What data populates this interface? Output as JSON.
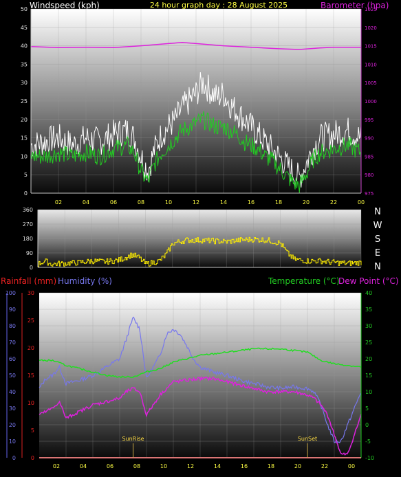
{
  "chart_data": [
    {
      "type": "line",
      "title": "24 hour graph day : 28 August 2025",
      "ylabel_left": "Windspeed (kph)",
      "ylabel_right": "Barometer (hpa)",
      "y_left_ticks": [
        "0",
        "5",
        "10",
        "15",
        "20",
        "25",
        "30",
        "35",
        "40",
        "45",
        "50"
      ],
      "y_right_ticks": [
        "975",
        "980",
        "985",
        "990",
        "995",
        "1000",
        "1005",
        "1010",
        "1015",
        "1020",
        "1025"
      ],
      "x_ticks": [
        "02",
        "04",
        "06",
        "08",
        "10",
        "12",
        "14",
        "16",
        "18",
        "20",
        "22",
        "00"
      ],
      "ylim_left": [
        0,
        50
      ],
      "ylim_right": [
        975,
        1025
      ],
      "colors": {
        "gust": "#ffffff",
        "average": "#22cc22",
        "barometer": "#dd22dd",
        "title": "#ffff44"
      },
      "series": [
        {
          "key": "barometer",
          "x": [
            0,
            2,
            4,
            6,
            8,
            10,
            11,
            12,
            14,
            16,
            18,
            19.5,
            21,
            22,
            24
          ],
          "values": [
            1014.8,
            1014.5,
            1014.6,
            1014.5,
            1015.0,
            1015.6,
            1015.9,
            1015.6,
            1015.0,
            1014.6,
            1014.2,
            1014.0,
            1014.4,
            1014.6,
            1014.6
          ]
        },
        {
          "key": "gust",
          "x": [
            0,
            1,
            2,
            3,
            4,
            5,
            6,
            7,
            7.5,
            8,
            8.5,
            9,
            9.5,
            10,
            10.5,
            11,
            11.5,
            12,
            12.5,
            13,
            13.5,
            14,
            14.5,
            15,
            15.5,
            16,
            16.5,
            17,
            17.5,
            18,
            18.5,
            19,
            19.5,
            20,
            20.5,
            21,
            22,
            23,
            24
          ],
          "values": [
            13,
            14,
            15,
            13,
            15,
            14,
            16,
            17,
            15,
            10,
            6,
            12,
            16,
            18,
            20,
            23,
            25,
            27,
            30,
            28,
            26,
            27,
            24,
            22,
            20,
            18,
            16,
            14,
            12,
            10,
            8,
            6,
            4,
            8,
            12,
            15,
            16,
            17,
            15
          ]
        },
        {
          "key": "average",
          "x": [
            0,
            1,
            2,
            3,
            4,
            5,
            6,
            7,
            7.5,
            8,
            8.5,
            9,
            9.5,
            10,
            10.5,
            11,
            11.5,
            12,
            12.5,
            13,
            13.5,
            14,
            14.5,
            15,
            15.5,
            16,
            16.5,
            17,
            17.5,
            18,
            18.5,
            19,
            19.5,
            20,
            20.5,
            21,
            22,
            23,
            24
          ],
          "values": [
            10,
            10,
            11,
            10,
            11,
            10,
            12,
            13,
            11,
            6,
            3,
            8,
            11,
            13,
            15,
            17,
            18,
            19,
            20,
            19,
            18,
            18,
            17,
            16,
            14,
            13,
            12,
            10,
            9,
            7,
            5,
            3,
            2,
            5,
            9,
            11,
            12,
            13,
            11
          ]
        }
      ]
    },
    {
      "type": "line",
      "ylabel_right": "N W S E N",
      "compass": [
        "N",
        "W",
        "S",
        "E",
        "N"
      ],
      "y_ticks": [
        "0",
        "90",
        "180",
        "270",
        "360"
      ],
      "ylim": [
        0,
        360
      ],
      "colors": {
        "direction": "#ffee00"
      },
      "series": [
        {
          "key": "direction",
          "x": [
            0,
            0.5,
            1,
            2,
            3,
            4,
            5,
            6,
            7,
            7.5,
            8,
            9,
            9.5,
            10,
            11,
            12,
            13,
            14,
            15,
            16,
            17,
            18,
            18.5,
            19,
            20,
            21,
            22,
            23,
            24
          ],
          "values": [
            20,
            40,
            20,
            25,
            30,
            40,
            35,
            45,
            80,
            60,
            20,
            40,
            80,
            150,
            170,
            170,
            165,
            160,
            170,
            175,
            170,
            150,
            90,
            50,
            40,
            40,
            30,
            25,
            30
          ]
        }
      ]
    },
    {
      "type": "line",
      "ylabel_left_1": "Rainfall (mm)",
      "ylabel_left_2": "Humidity (%)",
      "ylabel_right_1": "Temperature (°C)",
      "ylabel_right_2": "Dew Point (°C)",
      "rain_ticks": [
        "0",
        "5",
        "10",
        "15",
        "20",
        "25",
        "30"
      ],
      "hum_ticks": [
        "0",
        "10",
        "20",
        "30",
        "40",
        "50",
        "60",
        "70",
        "80",
        "90",
        "100"
      ],
      "temp_ticks": [
        "-10",
        "-5",
        "0",
        "5",
        "10",
        "15",
        "20",
        "25",
        "30",
        "35",
        "40"
      ],
      "x_ticks": [
        "02",
        "04",
        "06",
        "08",
        "10",
        "12",
        "14",
        "16",
        "18",
        "20",
        "22",
        "00"
      ],
      "ylim_rain": [
        0,
        30
      ],
      "ylim_hum": [
        0,
        100
      ],
      "ylim_temp": [
        -10,
        40
      ],
      "annotations": [
        {
          "text": "SunRise",
          "x": 7
        },
        {
          "text": "SunSet",
          "x": 20
        }
      ],
      "colors": {
        "rain": "#ee2222",
        "humidity": "#7777ee",
        "temperature": "#22dd22",
        "dewpoint": "#dd22dd",
        "sunline": "#ffdd44"
      },
      "series": [
        {
          "key": "humidity",
          "x": [
            0,
            0.5,
            1,
            1.5,
            2,
            3,
            4,
            5,
            6,
            6.5,
            7,
            7.5,
            8,
            8.5,
            9,
            9.5,
            10,
            10.5,
            11,
            11.5,
            12,
            13,
            14,
            15,
            16,
            17,
            18,
            19,
            20,
            20.5,
            21,
            21.5,
            22,
            22.5,
            23,
            23.5,
            24
          ],
          "values": [
            42,
            48,
            50,
            55,
            45,
            47,
            50,
            55,
            60,
            72,
            85,
            78,
            48,
            55,
            62,
            75,
            78,
            75,
            68,
            60,
            55,
            52,
            50,
            47,
            45,
            43,
            42,
            43,
            42,
            40,
            32,
            20,
            10,
            10,
            20,
            30,
            40
          ]
        },
        {
          "key": "temperature",
          "x": [
            0,
            1,
            2,
            3,
            4,
            5,
            6,
            7,
            8,
            9,
            10,
            11,
            12,
            13,
            14,
            15,
            16,
            17,
            18,
            19,
            20,
            21,
            22,
            23,
            24
          ],
          "values": [
            19.5,
            19.5,
            18,
            17,
            16,
            15,
            14.5,
            14.5,
            16,
            17,
            19,
            20,
            21,
            21.5,
            22,
            22.5,
            23,
            23,
            23,
            22.5,
            22,
            19.5,
            18.5,
            18,
            17.5
          ]
        },
        {
          "key": "dewpoint",
          "x": [
            0,
            0.5,
            1,
            1.5,
            2,
            3,
            4,
            5,
            6,
            6.5,
            7,
            7.5,
            8,
            8.5,
            9,
            9.5,
            10,
            11,
            12,
            13,
            14,
            15,
            16,
            17,
            18,
            19,
            20,
            20.5,
            21,
            21.5,
            22,
            22.5,
            23,
            23.5,
            24
          ],
          "values": [
            3,
            4,
            5,
            7,
            2,
            4,
            6,
            7,
            8,
            10,
            11,
            10,
            3,
            6,
            9,
            11,
            13,
            13.5,
            14,
            14,
            13,
            12,
            11,
            10,
            10,
            10,
            9,
            8,
            6,
            3,
            -3,
            -9,
            -9,
            -3,
            3
          ]
        },
        {
          "key": "rain",
          "x": [
            0,
            24
          ],
          "values": [
            0,
            0
          ]
        }
      ]
    }
  ]
}
